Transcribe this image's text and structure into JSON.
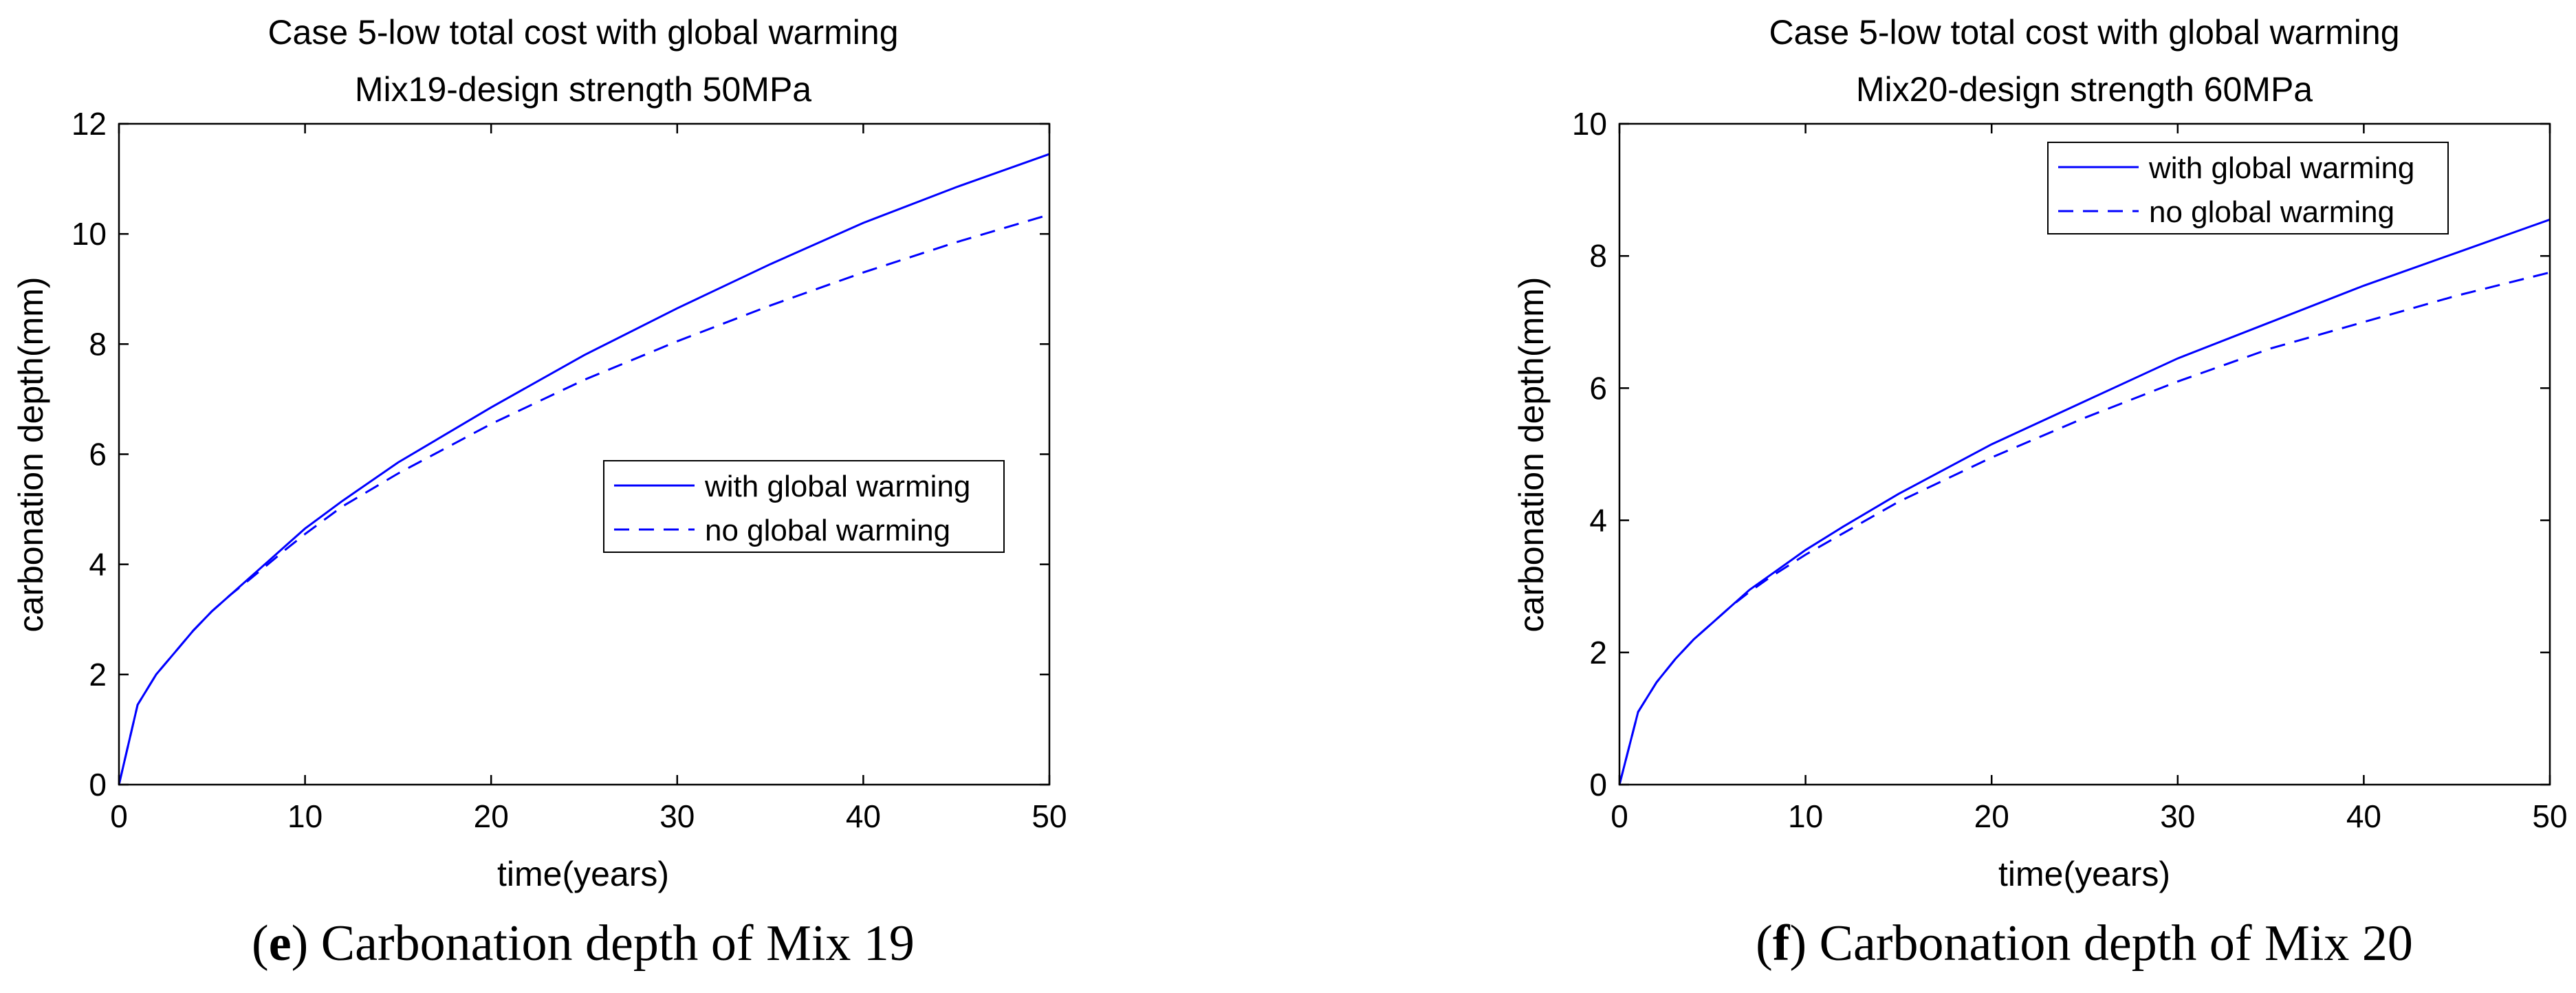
{
  "chart_data": [
    {
      "type": "line",
      "title": "Case 5-low total cost with global warming",
      "subtitle": "Mix19-design strength 50MPa",
      "xlabel": "time(years)",
      "ylabel": "carbonation depth(mm)",
      "xlim": [
        0,
        50
      ],
      "ylim": [
        0,
        12
      ],
      "xticks": [
        0,
        10,
        20,
        30,
        40,
        50
      ],
      "yticks": [
        0,
        2,
        4,
        6,
        8,
        10,
        12
      ],
      "legend_position": "center-right",
      "caption_letter": "e",
      "caption_text": " Carbonation depth of Mix 19",
      "series": [
        {
          "name": "with global warming",
          "style": "solid",
          "color": "#0000ff",
          "x": [
            0,
            1,
            2,
            3,
            4,
            5,
            6,
            7,
            8,
            9,
            10,
            12,
            15,
            20,
            25,
            30,
            35,
            40,
            45,
            50
          ],
          "y": [
            0,
            1.45,
            2.0,
            2.4,
            2.8,
            3.15,
            3.45,
            3.75,
            4.05,
            4.35,
            4.65,
            5.15,
            5.85,
            6.85,
            7.8,
            8.65,
            9.45,
            10.2,
            10.85,
            11.45
          ]
        },
        {
          "name": "no global warming",
          "style": "dashed",
          "color": "#0000ff",
          "x": [
            0,
            1,
            2,
            3,
            4,
            5,
            6,
            7,
            8,
            9,
            10,
            12,
            15,
            20,
            25,
            30,
            35,
            40,
            45,
            50
          ],
          "y": [
            0,
            1.45,
            2.0,
            2.4,
            2.8,
            3.15,
            3.45,
            3.72,
            4.0,
            4.28,
            4.55,
            5.05,
            5.65,
            6.55,
            7.35,
            8.05,
            8.7,
            9.3,
            9.85,
            10.35
          ]
        }
      ]
    },
    {
      "type": "line",
      "title": "Case 5-low total cost with global warming",
      "subtitle": "Mix20-design strength 60MPa",
      "xlabel": "time(years)",
      "ylabel": "carbonation depth(mm)",
      "xlim": [
        0,
        50
      ],
      "ylim": [
        0,
        10
      ],
      "xticks": [
        0,
        10,
        20,
        30,
        40,
        50
      ],
      "yticks": [
        0,
        2,
        4,
        6,
        8,
        10
      ],
      "legend_position": "top-right",
      "caption_letter": "f",
      "caption_text": " Carbonation depth of Mix 20",
      "series": [
        {
          "name": "with global warming",
          "style": "solid",
          "color": "#0000ff",
          "x": [
            0,
            1,
            2,
            3,
            4,
            5,
            6,
            7,
            8,
            9,
            10,
            12,
            15,
            20,
            25,
            30,
            35,
            40,
            45,
            50
          ],
          "y": [
            0,
            1.1,
            1.55,
            1.9,
            2.2,
            2.45,
            2.7,
            2.95,
            3.15,
            3.35,
            3.55,
            3.9,
            4.4,
            5.15,
            5.8,
            6.45,
            7.0,
            7.55,
            8.05,
            8.55
          ]
        },
        {
          "name": "no global warming",
          "style": "dashed",
          "color": "#0000ff",
          "x": [
            0,
            1,
            2,
            3,
            4,
            5,
            6,
            7,
            8,
            9,
            10,
            12,
            15,
            20,
            25,
            30,
            35,
            40,
            45,
            50
          ],
          "y": [
            0,
            1.1,
            1.55,
            1.9,
            2.2,
            2.45,
            2.7,
            2.92,
            3.12,
            3.3,
            3.48,
            3.8,
            4.28,
            4.95,
            5.55,
            6.1,
            6.6,
            7.0,
            7.4,
            7.75
          ]
        }
      ]
    }
  ]
}
